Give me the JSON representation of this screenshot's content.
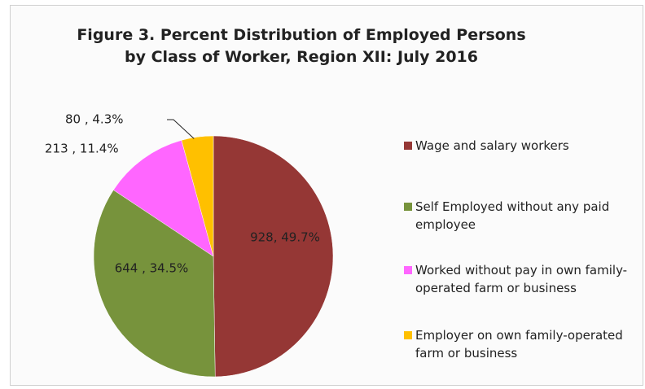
{
  "chart_data": {
    "type": "pie",
    "title": "Figure 3. Percent Distribution of Employed Persons by Class of Worker, Region XII: July 2016",
    "categories": [
      "Wage and salary workers",
      "Self Employed without any paid employee",
      "Worked without pay in own family-operated farm or business",
      "Employer on own family-operated farm or business"
    ],
    "values": [
      928,
      644,
      213,
      80
    ],
    "value_labels": [
      "928, 49.7%",
      "644 , 34.5%",
      "213 , 11.4%",
      "80 , 4.3%"
    ],
    "colors": [
      "#953735",
      "#77933c",
      "#ff66ff",
      "#ffc000"
    ]
  }
}
